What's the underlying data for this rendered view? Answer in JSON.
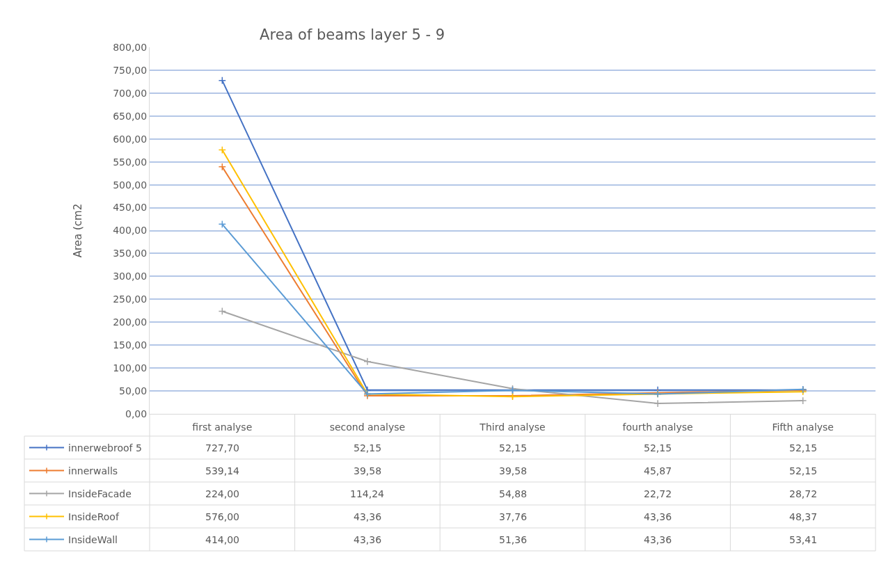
{
  "chart_data": {
    "type": "line",
    "title": "Area of beams layer 5 - 9",
    "ylabel": "Area (cm2",
    "categories": [
      "first analyse",
      "second analyse",
      "Third analyse",
      "fourth analyse",
      "Fifth analyse"
    ],
    "series": [
      {
        "name": "innerwebroof 5",
        "color": "#4472c4",
        "values": [
          727.7,
          52.15,
          52.15,
          52.15,
          52.15
        ],
        "value_labels": [
          "727,70",
          "52,15",
          "52,15",
          "52,15",
          "52,15"
        ]
      },
      {
        "name": "innerwalls",
        "color": "#ed7d31",
        "values": [
          539.14,
          39.58,
          39.58,
          45.87,
          52.15
        ],
        "value_labels": [
          "539,14",
          "39,58",
          "39,58",
          "45,87",
          "52,15"
        ]
      },
      {
        "name": "InsideFacade",
        "color": "#a5a5a5",
        "values": [
          224.0,
          114.24,
          54.88,
          22.72,
          28.72
        ],
        "value_labels": [
          "224,00",
          "114,24",
          "54,88",
          "22,72",
          "28,72"
        ]
      },
      {
        "name": "InsideRoof",
        "color": "#ffc000",
        "values": [
          576.0,
          43.36,
          37.76,
          43.36,
          48.37
        ],
        "value_labels": [
          "576,00",
          "43,36",
          "37,76",
          "43,36",
          "48,37"
        ]
      },
      {
        "name": "InsideWall",
        "color": "#5b9bd5",
        "values": [
          414.0,
          43.36,
          51.36,
          43.36,
          53.41
        ],
        "value_labels": [
          "414,00",
          "43,36",
          "51,36",
          "43,36",
          "53,41"
        ]
      }
    ],
    "ylim": [
      0,
      800
    ],
    "yticks": [
      {
        "value": 0,
        "label": "0,00"
      },
      {
        "value": 50,
        "label": "50,00"
      },
      {
        "value": 100,
        "label": "100,00"
      },
      {
        "value": 150,
        "label": "150,00"
      },
      {
        "value": 200,
        "label": "200,00"
      },
      {
        "value": 250,
        "label": "250,00"
      },
      {
        "value": 300,
        "label": "300,00"
      },
      {
        "value": 350,
        "label": "350,00"
      },
      {
        "value": 400,
        "label": "400,00"
      },
      {
        "value": 450,
        "label": "450,00"
      },
      {
        "value": 500,
        "label": "500,00"
      },
      {
        "value": 550,
        "label": "550,00"
      },
      {
        "value": 600,
        "label": "600,00"
      },
      {
        "value": 650,
        "label": "650,00"
      },
      {
        "value": 700,
        "label": "700,00"
      },
      {
        "value": 750,
        "label": "750,00"
      },
      {
        "value": 800,
        "label": "800,00"
      }
    ],
    "grid": "y",
    "legend": "bottom left",
    "marker": "cross",
    "line_style": "solid"
  }
}
